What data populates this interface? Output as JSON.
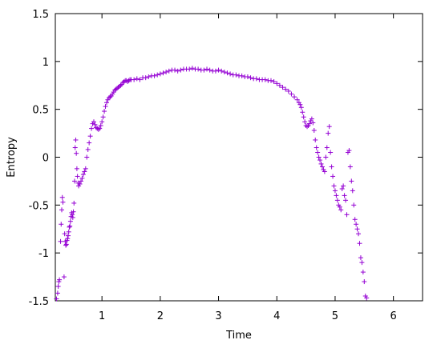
{
  "chart_data": {
    "type": "scatter",
    "title": "",
    "xlabel": "Time",
    "ylabel": "Entropy",
    "xlim": [
      0.2,
      6.5
    ],
    "ylim": [
      -1.5,
      1.5
    ],
    "x_ticks": [
      1,
      2,
      3,
      4,
      5,
      6
    ],
    "x_tick_labels": [
      "1",
      "2",
      "3",
      "4",
      "5",
      "6"
    ],
    "y_ticks": [
      -1.5,
      -1,
      -0.5,
      0,
      0.5,
      1,
      1.5
    ],
    "y_tick_labels": [
      "-1.5",
      "-1",
      "-0.5",
      "0",
      "0.5",
      "1",
      "1.5"
    ],
    "grid": false,
    "marker": "+",
    "series": [
      {
        "color": "#9400d3",
        "points": [
          [
            0.22,
            -1.48
          ],
          [
            0.24,
            -1.42
          ],
          [
            0.25,
            -1.35
          ],
          [
            0.26,
            -1.3
          ],
          [
            0.27,
            -1.28
          ],
          [
            0.29,
            -0.88
          ],
          [
            0.3,
            -0.7
          ],
          [
            0.31,
            -0.55
          ],
          [
            0.32,
            -0.42
          ],
          [
            0.33,
            -0.47
          ],
          [
            0.35,
            -1.25
          ],
          [
            0.36,
            -0.8
          ],
          [
            0.37,
            -0.88
          ],
          [
            0.38,
            -0.92
          ],
          [
            0.39,
            -0.91
          ],
          [
            0.4,
            -0.87
          ],
          [
            0.41,
            -0.85
          ],
          [
            0.42,
            -0.82
          ],
          [
            0.43,
            -0.78
          ],
          [
            0.44,
            -0.73
          ],
          [
            0.45,
            -0.72
          ],
          [
            0.46,
            -0.67
          ],
          [
            0.47,
            -0.62
          ],
          [
            0.48,
            -0.58
          ],
          [
            0.49,
            -0.6
          ],
          [
            0.5,
            -0.63
          ],
          [
            0.51,
            -0.57
          ],
          [
            0.52,
            -0.48
          ],
          [
            0.53,
            -0.25
          ],
          [
            0.54,
            0.1
          ],
          [
            0.55,
            0.18
          ],
          [
            0.56,
            0.04
          ],
          [
            0.57,
            -0.12
          ],
          [
            0.58,
            -0.2
          ],
          [
            0.59,
            -0.27
          ],
          [
            0.6,
            -0.3
          ],
          [
            0.62,
            -0.28
          ],
          [
            0.64,
            -0.25
          ],
          [
            0.66,
            -0.22
          ],
          [
            0.68,
            -0.18
          ],
          [
            0.7,
            -0.15
          ],
          [
            0.72,
            -0.12
          ],
          [
            0.74,
            0.0
          ],
          [
            0.76,
            0.08
          ],
          [
            0.78,
            0.15
          ],
          [
            0.8,
            0.22
          ],
          [
            0.82,
            0.3
          ],
          [
            0.84,
            0.35
          ],
          [
            0.86,
            0.37
          ],
          [
            0.88,
            0.34
          ],
          [
            0.9,
            0.31
          ],
          [
            0.92,
            0.3
          ],
          [
            0.94,
            0.29
          ],
          [
            0.96,
            0.3
          ],
          [
            0.98,
            0.33
          ],
          [
            1.0,
            0.37
          ],
          [
            1.02,
            0.42
          ],
          [
            1.04,
            0.48
          ],
          [
            1.06,
            0.53
          ],
          [
            1.08,
            0.57
          ],
          [
            1.1,
            0.6
          ],
          [
            1.12,
            0.62
          ],
          [
            1.14,
            0.63
          ],
          [
            1.16,
            0.64
          ],
          [
            1.18,
            0.66
          ],
          [
            1.2,
            0.68
          ],
          [
            1.22,
            0.7
          ],
          [
            1.24,
            0.71
          ],
          [
            1.26,
            0.72
          ],
          [
            1.28,
            0.73
          ],
          [
            1.3,
            0.74
          ],
          [
            1.32,
            0.75
          ],
          [
            1.34,
            0.76
          ],
          [
            1.36,
            0.78
          ],
          [
            1.38,
            0.79
          ],
          [
            1.4,
            0.8
          ],
          [
            1.42,
            0.8
          ],
          [
            1.44,
            0.79
          ],
          [
            1.46,
            0.8
          ],
          [
            1.48,
            0.81
          ],
          [
            1.5,
            0.81
          ],
          [
            1.55,
            0.81
          ],
          [
            1.6,
            0.82
          ],
          [
            1.65,
            0.81
          ],
          [
            1.7,
            0.83
          ],
          [
            1.75,
            0.83
          ],
          [
            1.8,
            0.84
          ],
          [
            1.85,
            0.85
          ],
          [
            1.9,
            0.85
          ],
          [
            1.95,
            0.86
          ],
          [
            2.0,
            0.87
          ],
          [
            2.05,
            0.88
          ],
          [
            2.1,
            0.89
          ],
          [
            2.15,
            0.9
          ],
          [
            2.2,
            0.91
          ],
          [
            2.25,
            0.91
          ],
          [
            2.3,
            0.9
          ],
          [
            2.35,
            0.91
          ],
          [
            2.4,
            0.92
          ],
          [
            2.45,
            0.92
          ],
          [
            2.5,
            0.92
          ],
          [
            2.55,
            0.93
          ],
          [
            2.6,
            0.92
          ],
          [
            2.65,
            0.92
          ],
          [
            2.7,
            0.91
          ],
          [
            2.75,
            0.91
          ],
          [
            2.8,
            0.92
          ],
          [
            2.85,
            0.91
          ],
          [
            2.9,
            0.9
          ],
          [
            2.95,
            0.9
          ],
          [
            3.0,
            0.91
          ],
          [
            3.05,
            0.9
          ],
          [
            3.1,
            0.89
          ],
          [
            3.15,
            0.88
          ],
          [
            3.2,
            0.87
          ],
          [
            3.25,
            0.86
          ],
          [
            3.3,
            0.86
          ],
          [
            3.35,
            0.85
          ],
          [
            3.4,
            0.85
          ],
          [
            3.45,
            0.84
          ],
          [
            3.5,
            0.84
          ],
          [
            3.55,
            0.83
          ],
          [
            3.6,
            0.82
          ],
          [
            3.65,
            0.82
          ],
          [
            3.7,
            0.81
          ],
          [
            3.75,
            0.81
          ],
          [
            3.8,
            0.81
          ],
          [
            3.85,
            0.8
          ],
          [
            3.9,
            0.8
          ],
          [
            3.95,
            0.79
          ],
          [
            4.0,
            0.77
          ],
          [
            4.05,
            0.75
          ],
          [
            4.1,
            0.73
          ],
          [
            4.15,
            0.71
          ],
          [
            4.2,
            0.69
          ],
          [
            4.25,
            0.66
          ],
          [
            4.3,
            0.63
          ],
          [
            4.35,
            0.6
          ],
          [
            4.38,
            0.57
          ],
          [
            4.4,
            0.55
          ],
          [
            4.42,
            0.52
          ],
          [
            4.44,
            0.47
          ],
          [
            4.46,
            0.42
          ],
          [
            4.48,
            0.37
          ],
          [
            4.5,
            0.33
          ],
          [
            4.52,
            0.32
          ],
          [
            4.54,
            0.33
          ],
          [
            4.56,
            0.35
          ],
          [
            4.58,
            0.38
          ],
          [
            4.6,
            0.4
          ],
          [
            4.62,
            0.36
          ],
          [
            4.64,
            0.28
          ],
          [
            4.66,
            0.18
          ],
          [
            4.68,
            0.1
          ],
          [
            4.7,
            0.05
          ],
          [
            4.72,
            0.0
          ],
          [
            4.74,
            -0.03
          ],
          [
            4.76,
            -0.07
          ],
          [
            4.78,
            -0.1
          ],
          [
            4.8,
            -0.13
          ],
          [
            4.82,
            -0.15
          ],
          [
            4.84,
            0.0
          ],
          [
            4.86,
            0.1
          ],
          [
            4.88,
            0.25
          ],
          [
            4.9,
            0.32
          ],
          [
            4.92,
            0.05
          ],
          [
            4.94,
            -0.1
          ],
          [
            4.96,
            -0.2
          ],
          [
            4.98,
            -0.3
          ],
          [
            5.0,
            -0.35
          ],
          [
            5.02,
            -0.4
          ],
          [
            5.04,
            -0.45
          ],
          [
            5.06,
            -0.5
          ],
          [
            5.08,
            -0.52
          ],
          [
            5.1,
            -0.55
          ],
          [
            5.12,
            -0.33
          ],
          [
            5.14,
            -0.3
          ],
          [
            5.16,
            -0.4
          ],
          [
            5.18,
            -0.45
          ],
          [
            5.2,
            -0.6
          ],
          [
            5.22,
            0.05
          ],
          [
            5.24,
            0.07
          ],
          [
            5.26,
            -0.1
          ],
          [
            5.28,
            -0.25
          ],
          [
            5.3,
            -0.35
          ],
          [
            5.32,
            -0.5
          ],
          [
            5.34,
            -0.65
          ],
          [
            5.36,
            -0.7
          ],
          [
            5.38,
            -0.75
          ],
          [
            5.4,
            -0.8
          ],
          [
            5.42,
            -0.9
          ],
          [
            5.44,
            -1.05
          ],
          [
            5.46,
            -1.1
          ],
          [
            5.48,
            -1.2
          ],
          [
            5.5,
            -1.3
          ],
          [
            5.52,
            -1.45
          ],
          [
            5.54,
            -1.47
          ]
        ]
      }
    ]
  }
}
